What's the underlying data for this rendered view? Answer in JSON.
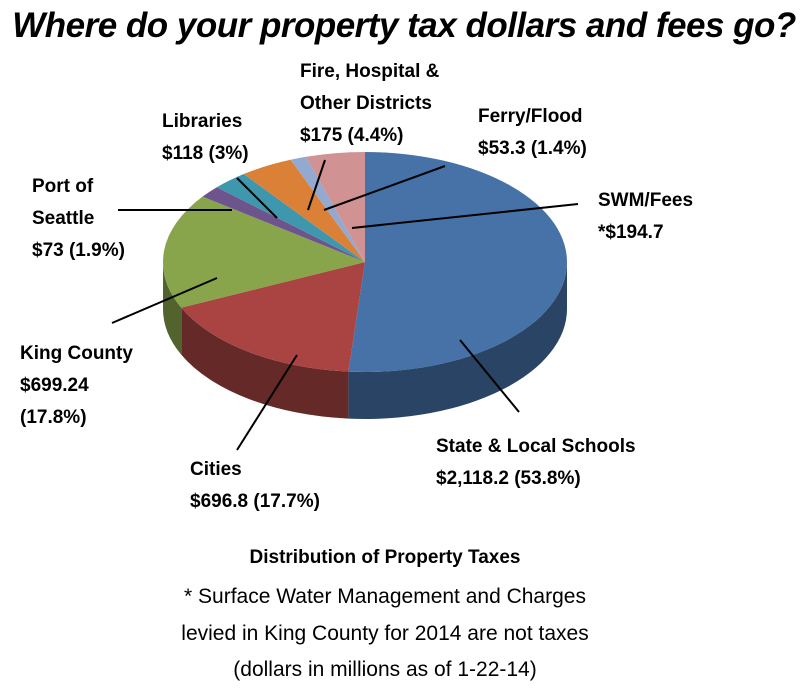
{
  "title": "Where do your property tax dollars and fees go?",
  "labels": {
    "fire": {
      "l1": "Fire, Hospital &",
      "l2": "Other Districts",
      "l3": "$175 (4.4%)"
    },
    "libraries": {
      "l1": "Libraries",
      "l2": "$118 (3%)"
    },
    "ferry": {
      "l1": "Ferry/Flood",
      "l2": "$53.3 (1.4%)"
    },
    "port": {
      "l1": "Port of",
      "l2": "Seattle",
      "l3": "$73 (1.9%)"
    },
    "swm": {
      "l1": "SWM/Fees",
      "l2": "*$194.7"
    },
    "king": {
      "l1": "King County",
      "l2": "$699.24",
      "l3": "(17.8%)"
    },
    "cities": {
      "l1": "Cities",
      "l2": "$696.8 (17.7%)"
    },
    "schools": {
      "l1": "State & Local Schools",
      "l2": "$2,118.2 (53.8%)"
    }
  },
  "footer": {
    "heading": "Distribution of Property Taxes",
    "note1": "* Surface Water Management and Charges",
    "note2": "levied in King County for 2014 are not taxes",
    "note3": "(dollars in millions as of 1-22-14)"
  },
  "chart_data": {
    "type": "pie",
    "style": "3d",
    "title": "Where do your property tax dollars and fees go?",
    "subtitle": "Distribution of Property Taxes",
    "units": "dollars in millions as of 1-22-14",
    "categories": [
      "State & Local Schools",
      "Cities",
      "King County",
      "Port of Seattle",
      "Libraries",
      "Fire, Hospital & Other Districts",
      "Ferry/Flood",
      "SWM/Fees"
    ],
    "values": [
      2118.2,
      696.8,
      699.24,
      73,
      118,
      175,
      53.3,
      194.7
    ],
    "percentages": [
      53.8,
      17.7,
      17.8,
      1.9,
      3.0,
      4.4,
      1.4,
      null
    ],
    "colors": [
      "#4672a8",
      "#a94442",
      "#88a54c",
      "#6e548d",
      "#3f97ad",
      "#da8137",
      "#93a9d0",
      "#d09292"
    ],
    "annotations": [
      "* Surface Water Management and Charges levied in King County for 2014 are not taxes"
    ]
  }
}
